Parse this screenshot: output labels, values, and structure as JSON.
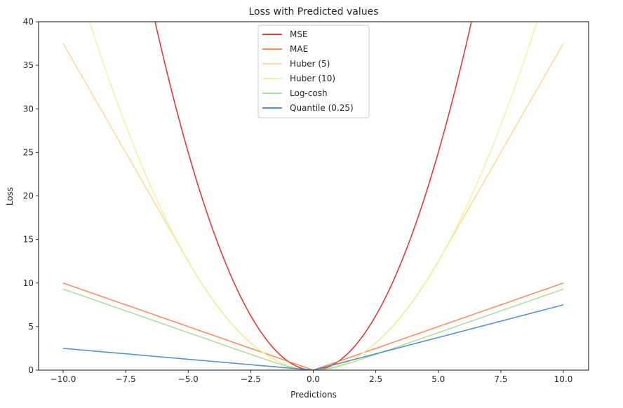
{
  "chart_data": {
    "type": "line",
    "title": "Loss with Predicted values",
    "xlabel": "Predictions",
    "ylabel": "Loss",
    "xlim": [
      -11,
      11
    ],
    "ylim": [
      0,
      40
    ],
    "xticks": [
      -10.0,
      -7.5,
      -5.0,
      -2.5,
      0.0,
      2.5,
      5.0,
      7.5,
      10.0
    ],
    "xtick_labels": [
      "−10.0",
      "−7.5",
      "−5.0",
      "−2.5",
      "0.0",
      "2.5",
      "5.0",
      "7.5",
      "10.0"
    ],
    "yticks": [
      0,
      5,
      10,
      15,
      20,
      25,
      30,
      35,
      40
    ],
    "ytick_labels": [
      "0",
      "5",
      "10",
      "15",
      "20",
      "25",
      "30",
      "35",
      "40"
    ],
    "grid": false,
    "legend_position": "upper center",
    "x": [
      -10,
      -9.5,
      -9,
      -8.5,
      -8,
      -7.5,
      -7,
      -6.5,
      -6,
      -5.5,
      -5,
      -4.5,
      -4,
      -3.5,
      -3,
      -2.5,
      -2,
      -1.5,
      -1,
      -0.5,
      0,
      0.5,
      1,
      1.5,
      2,
      2.5,
      3,
      3.5,
      4,
      4.5,
      5,
      5.5,
      6,
      6.5,
      7,
      7.5,
      8,
      8.5,
      9,
      9.5,
      10
    ],
    "series": [
      {
        "name": "MSE",
        "color": "#d7191c",
        "values": [
          100,
          90.25,
          81,
          72.25,
          64,
          56.25,
          49,
          42.25,
          36,
          30.25,
          25,
          20.25,
          16,
          12.25,
          9,
          6.25,
          4,
          2.25,
          1,
          0.25,
          0,
          0.25,
          1,
          2.25,
          4,
          6.25,
          9,
          12.25,
          16,
          20.25,
          25,
          30.25,
          36,
          42.25,
          49,
          56.25,
          64,
          72.25,
          81,
          90.25,
          100
        ]
      },
      {
        "name": "MAE",
        "color": "#f17c4a",
        "values": [
          10,
          9.5,
          9,
          8.5,
          8,
          7.5,
          7,
          6.5,
          6,
          5.5,
          5,
          4.5,
          4,
          3.5,
          3,
          2.5,
          2,
          1.5,
          1,
          0.5,
          0,
          0.5,
          1,
          1.5,
          2,
          2.5,
          3,
          3.5,
          4,
          4.5,
          5,
          5.5,
          6,
          6.5,
          7,
          7.5,
          8,
          8.5,
          9,
          9.5,
          10
        ]
      },
      {
        "name": "Huber (5)",
        "color": "#fdd589",
        "values": [
          37.5,
          35,
          32.5,
          30,
          27.5,
          25,
          22.5,
          20,
          17.5,
          15,
          12.5,
          10.125,
          8,
          6.125,
          4.5,
          3.125,
          2,
          1.125,
          0.5,
          0.125,
          0,
          0.125,
          0.5,
          1.125,
          2,
          3.125,
          4.5,
          6.125,
          8,
          10.125,
          12.5,
          15,
          17.5,
          20,
          22.5,
          25,
          27.5,
          30,
          32.5,
          35,
          37.5
        ]
      },
      {
        "name": "Huber (10)",
        "color": "#e6f598",
        "values": [
          50,
          45.125,
          40.5,
          36.125,
          32,
          28.125,
          24.5,
          21.125,
          18,
          15.125,
          12.5,
          10.125,
          8,
          6.125,
          4.5,
          3.125,
          2,
          1.125,
          0.5,
          0.125,
          0,
          0.125,
          0.5,
          1.125,
          2,
          3.125,
          4.5,
          6.125,
          8,
          10.125,
          12.5,
          15.125,
          18,
          21.125,
          24.5,
          28.125,
          32,
          36.125,
          40.5,
          45.125,
          50
        ]
      },
      {
        "name": "Log-cosh",
        "color": "#a6d78e",
        "values": [
          9.307,
          8.807,
          8.307,
          7.807,
          7.307,
          6.807,
          6.307,
          5.807,
          5.307,
          5.807,
          4.307,
          3.808,
          3.308,
          2.809,
          2.31,
          1.813,
          1.325,
          0.855,
          0.434,
          0.12,
          0,
          0.12,
          0.434,
          0.855,
          1.325,
          1.813,
          2.31,
          2.809,
          3.308,
          3.808,
          4.307,
          4.807,
          5.307,
          5.807,
          6.307,
          6.807,
          7.307,
          7.807,
          8.307,
          8.807,
          9.307
        ]
      },
      {
        "name": "Quantile (0.25)",
        "color": "#3a80c0",
        "values": [
          2.5,
          2.375,
          2.25,
          2.125,
          2,
          1.875,
          1.75,
          1.625,
          1.5,
          1.375,
          1.25,
          1.125,
          1,
          0.875,
          0.75,
          0.625,
          0.5,
          0.375,
          0.25,
          0.125,
          0,
          0.375,
          0.75,
          1.125,
          1.5,
          1.875,
          2.25,
          2.625,
          3,
          3.375,
          3.75,
          4.125,
          4.5,
          4.875,
          5.25,
          5.625,
          6,
          6.375,
          6.75,
          7.125,
          7.5
        ]
      }
    ]
  }
}
